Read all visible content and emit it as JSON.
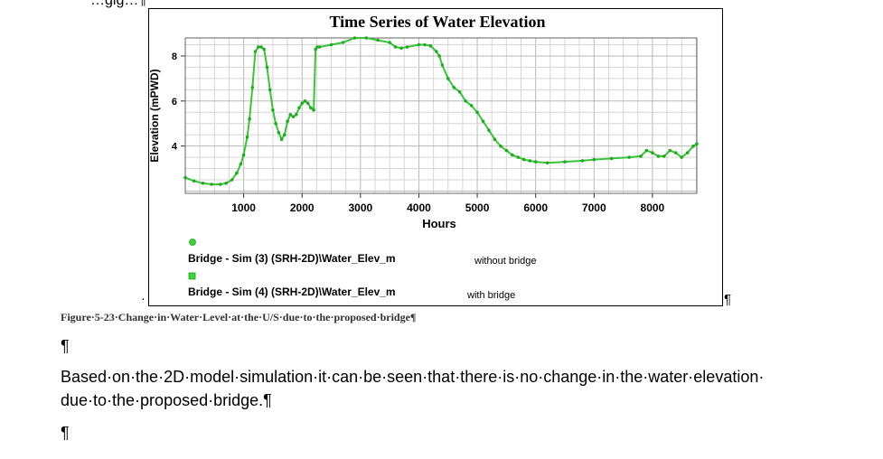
{
  "document": {
    "top_fragment": "…gig…¶",
    "anchor_mark": "·",
    "figure_end_mark": "¶",
    "caption": "Figure·5-23·Change·in·Water·Level·at·the·U/S·due·to·the·proposed·bridge¶",
    "paragraphs": [
      "¶",
      "Based·on·the·2D·model·simulation·it·can·be·seen·that·there·is·no·change·in·the·water·elevation· due·to·the·proposed·bridge.¶",
      "¶"
    ]
  },
  "chart_data": {
    "type": "line",
    "title": "Time Series of Water Elevation",
    "xlabel": "Hours",
    "ylabel": "Elevation (mPWD)",
    "xlim": [
      0,
      8760
    ],
    "ylim": [
      1.9,
      8.8
    ],
    "xticks": [
      1000,
      2000,
      3000,
      4000,
      5000,
      6000,
      7000,
      8000
    ],
    "yticks": [
      4,
      6,
      8
    ],
    "grid": true,
    "legend_position": "bottom-left",
    "line_color": "#33bb33",
    "marker_color": "#22aa22",
    "series": [
      {
        "name": "Bridge - Sim (3) (SRH-2D)\\Water_Elev_m",
        "note": "without bridge",
        "marker": "circle"
      },
      {
        "name": "Bridge - Sim (4) (SRH-2D)\\Water_Elev_m",
        "note": "with bridge",
        "marker": "square"
      }
    ],
    "x": [
      0,
      150,
      300,
      450,
      600,
      700,
      800,
      880,
      950,
      1000,
      1060,
      1100,
      1150,
      1200,
      1250,
      1300,
      1350,
      1400,
      1450,
      1500,
      1550,
      1600,
      1650,
      1700,
      1750,
      1800,
      1850,
      1900,
      1950,
      2000,
      2050,
      2100,
      2150,
      2200,
      2230,
      2260,
      2300,
      2500,
      2700,
      2900,
      3100,
      3300,
      3500,
      3600,
      3700,
      3800,
      4000,
      4100,
      4200,
      4300,
      4350,
      4400,
      4500,
      4600,
      4700,
      4800,
      4900,
      5000,
      5100,
      5200,
      5300,
      5400,
      5500,
      5600,
      5700,
      5800,
      5900,
      6000,
      6200,
      6500,
      6800,
      7000,
      7300,
      7600,
      7800,
      7900,
      8000,
      8100,
      8200,
      8300,
      8400,
      8500,
      8600,
      8700,
      8760
    ],
    "values": [
      2.6,
      2.45,
      2.35,
      2.3,
      2.3,
      2.35,
      2.5,
      2.8,
      3.2,
      3.6,
      4.4,
      5.2,
      6.6,
      8.2,
      8.4,
      8.4,
      8.3,
      7.5,
      6.5,
      5.6,
      5.0,
      4.6,
      4.3,
      4.5,
      5.1,
      5.4,
      5.3,
      5.4,
      5.7,
      5.9,
      6.0,
      5.9,
      5.7,
      5.6,
      8.3,
      8.4,
      8.4,
      8.5,
      8.6,
      8.8,
      8.8,
      8.7,
      8.6,
      8.4,
      8.35,
      8.4,
      8.5,
      8.5,
      8.45,
      8.2,
      8.0,
      7.6,
      7.0,
      6.6,
      6.4,
      6.0,
      5.8,
      5.5,
      5.1,
      4.7,
      4.3,
      4.0,
      3.8,
      3.6,
      3.5,
      3.4,
      3.35,
      3.3,
      3.25,
      3.3,
      3.35,
      3.4,
      3.45,
      3.5,
      3.55,
      3.8,
      3.7,
      3.55,
      3.55,
      3.8,
      3.7,
      3.5,
      3.7,
      4.0,
      4.1
    ]
  }
}
